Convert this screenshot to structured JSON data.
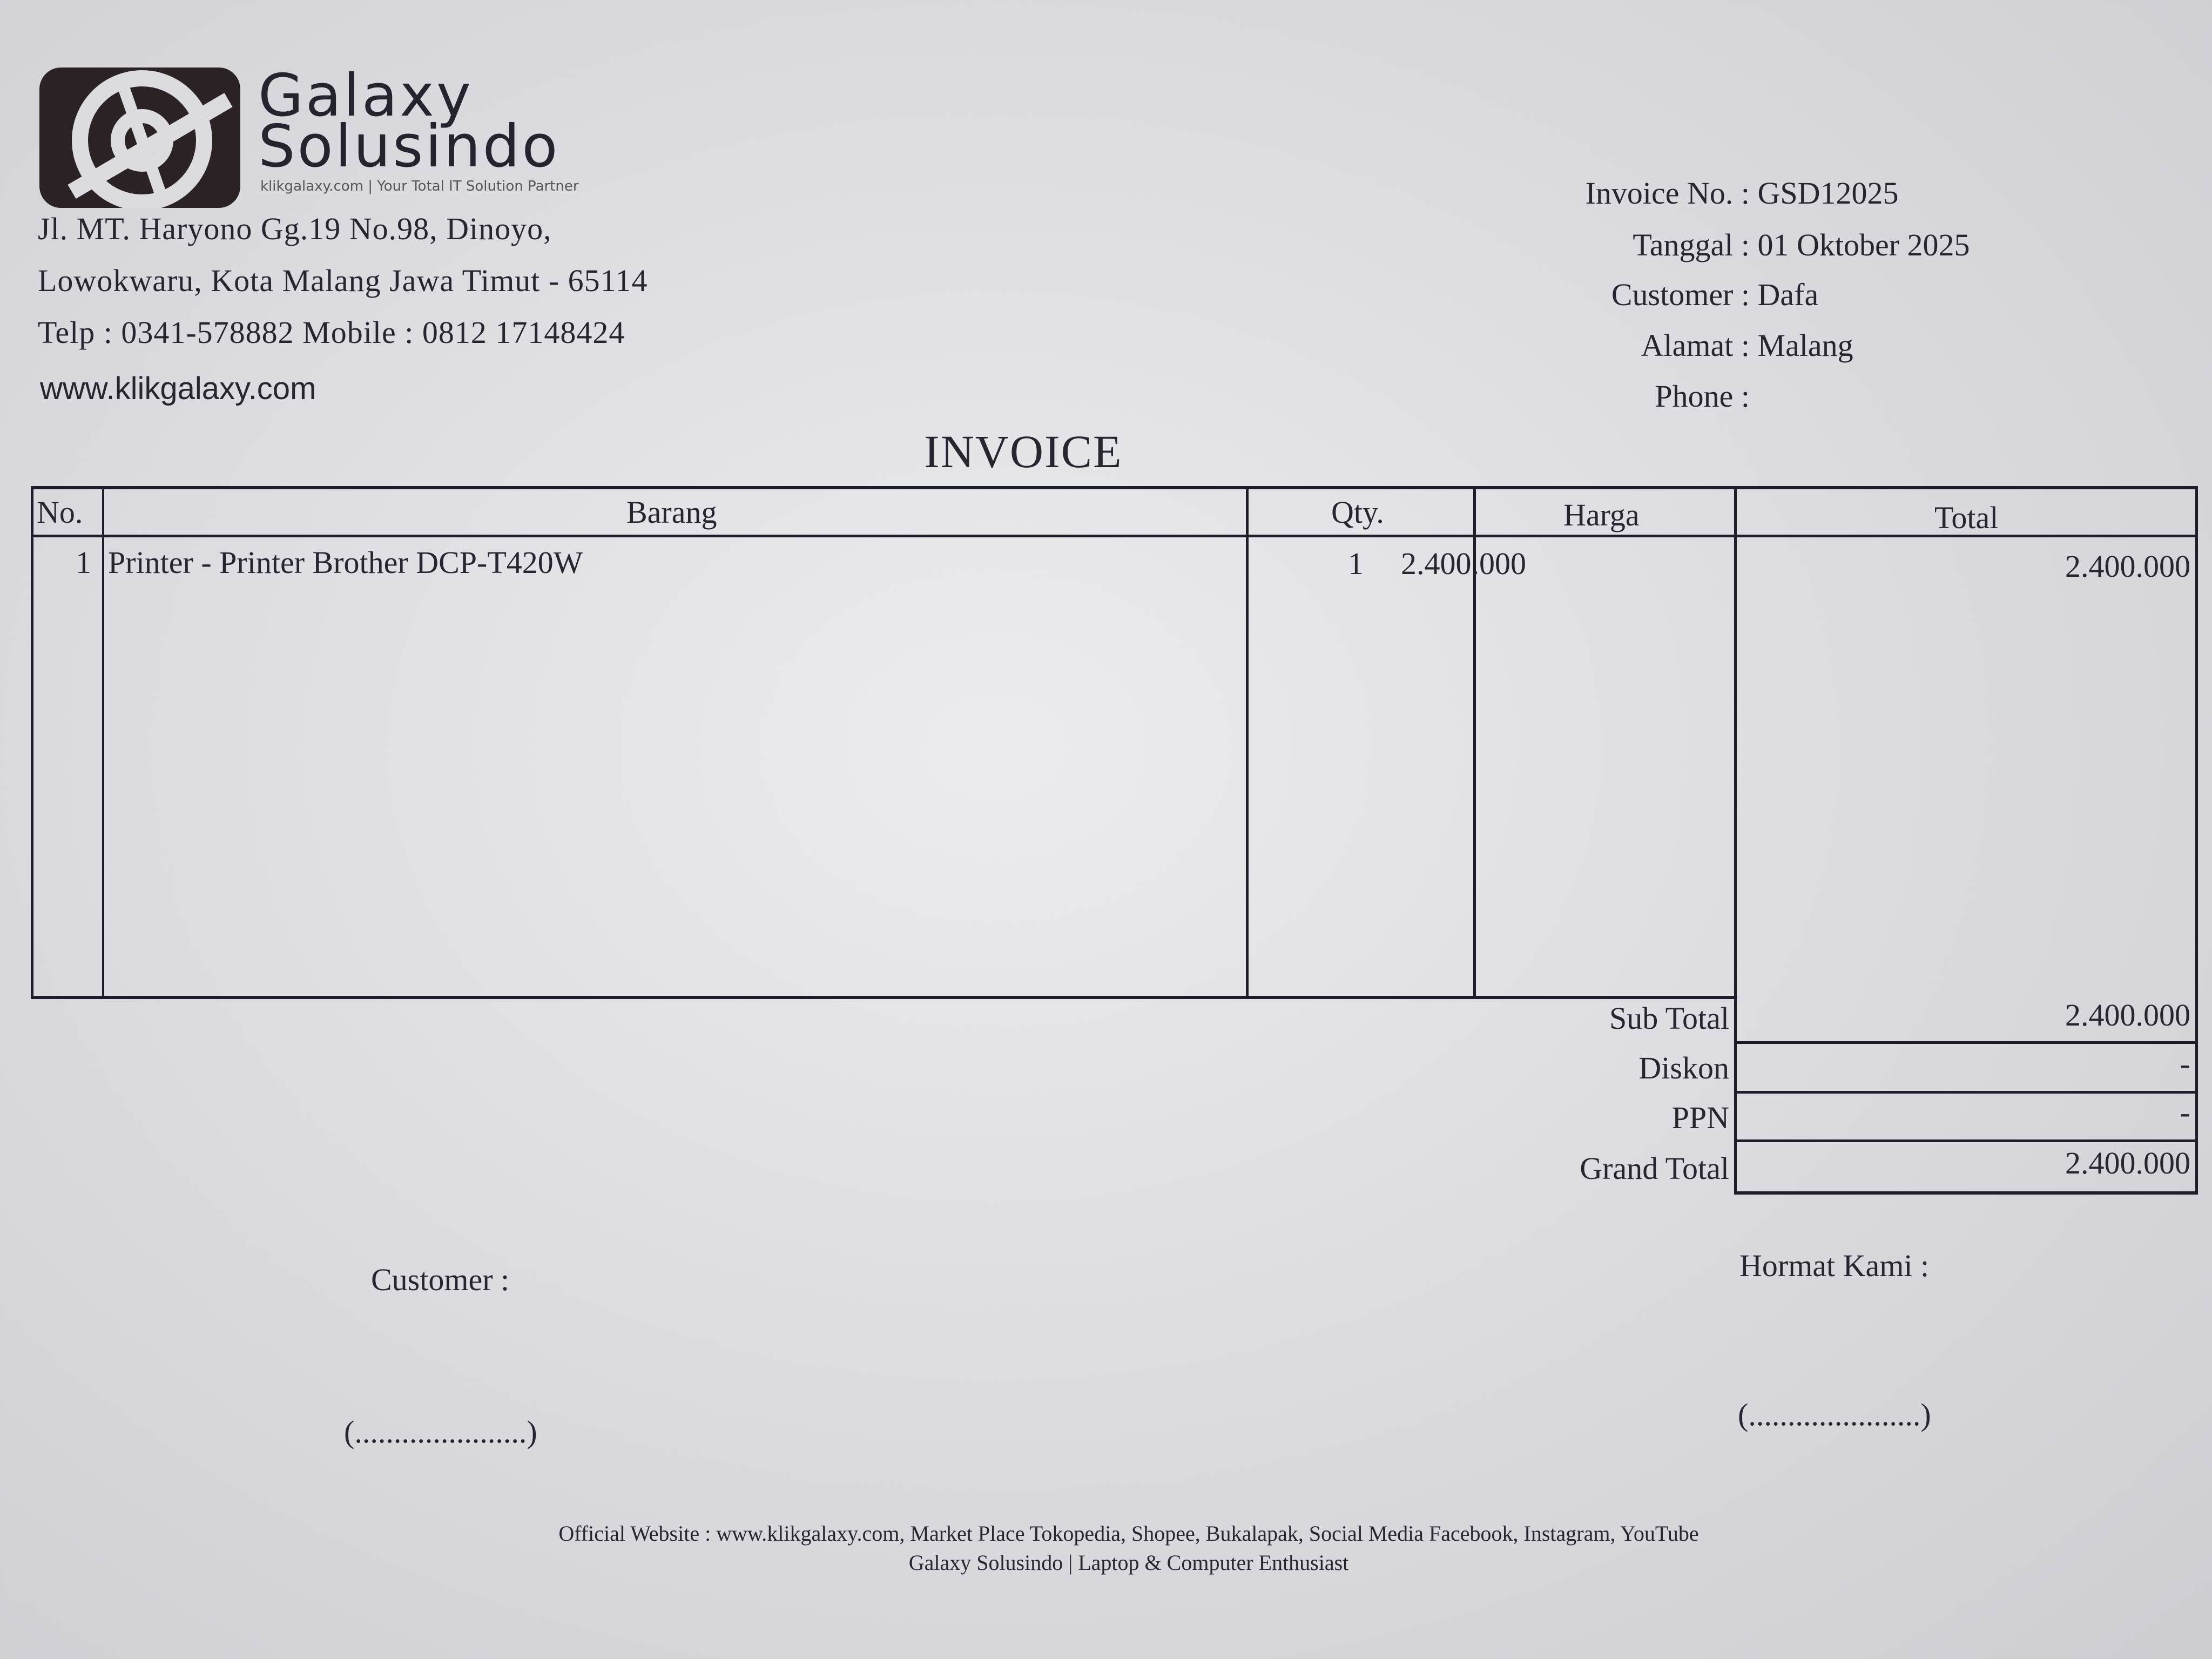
{
  "company": {
    "logo_line1": "Galaxy",
    "logo_line2": "Solusindo",
    "tagline": "klikgalaxy.com | Your Total IT Solution Partner",
    "address_line1": "Jl. MT. Haryono Gg.19 No.98, Dinoyo,",
    "address_line2": "Lowokwaru, Kota Malang Jawa Timut - 65114",
    "phone_line": "Telp : 0341-578882 Mobile : 0812 17148424",
    "website": "www.klikgalaxy.com"
  },
  "info": [
    {
      "label": "Invoice No. :",
      "value": "GSD12025"
    },
    {
      "label": "Tanggal :",
      "value": "01 Oktober 2025"
    },
    {
      "label": "Customer :",
      "value": "Dafa"
    },
    {
      "label": "Alamat :",
      "value": "Malang"
    },
    {
      "label": "Phone :",
      "value": ""
    }
  ],
  "title": "INVOICE",
  "table": {
    "headers": [
      "No.",
      "Barang",
      "Qty.",
      "Harga",
      "Total"
    ],
    "rows": [
      {
        "no": "1",
        "barang": "Printer - Printer Brother DCP-T420W",
        "qty": "1",
        "harga": "2.400.000",
        "total": "2.400.000"
      }
    ]
  },
  "totals": [
    {
      "label": "Sub Total",
      "value": "2.400.000"
    },
    {
      "label": "Diskon",
      "value": "-"
    },
    {
      "label": "PPN",
      "value": "-"
    },
    {
      "label": "Grand Total",
      "value": "2.400.000"
    }
  ],
  "signatures": {
    "customer_label": "Customer :",
    "company_label": "Hormat Kami :",
    "customer_line": "(......................)",
    "company_line": "(......................)"
  },
  "footer": {
    "line1": "Official Website : www.klikgalaxy.com, Market Place Tokopedia, Shopee, Bukalapak, Social Media Facebook, Instagram, YouTube",
    "line2": "Galaxy Solusindo | Laptop & Computer Enthusiast"
  },
  "colors": {
    "ink": "#262630",
    "paper": "#dedee2"
  }
}
